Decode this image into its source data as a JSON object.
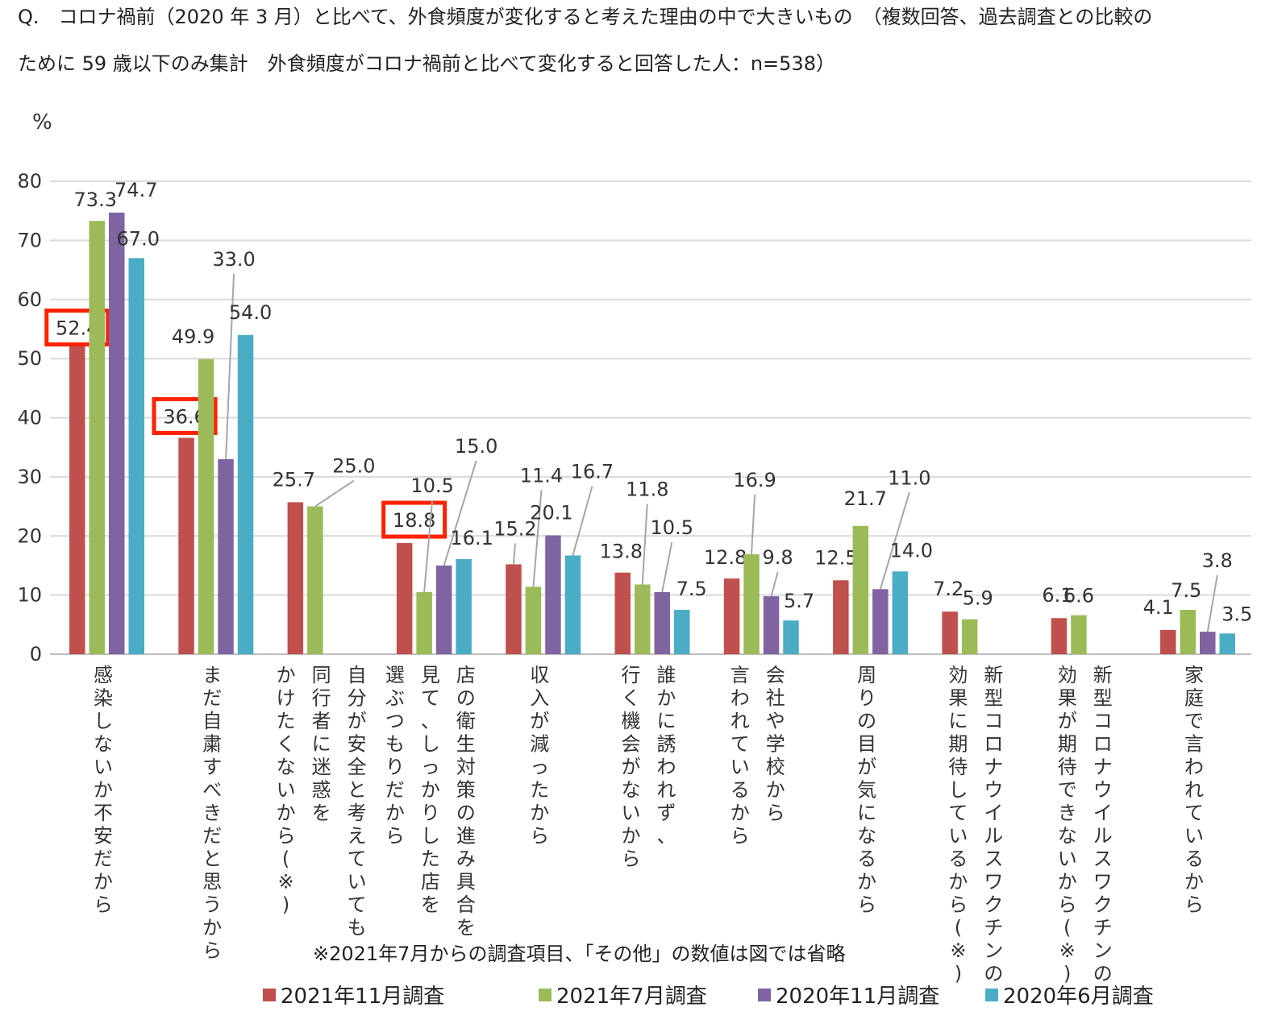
{
  "title": {
    "line1": "Q.　コロナ禍前（2020 年 3 月）と比べて、外食頻度が変化すると考えた理由の中で大きいもの　（複数回答、過去調査との比較の",
    "line2": "ために 59 歳以下のみ集計　外食頻度がコロナ禍前と比べて変化すると回答した人：n=538）"
  },
  "note": "※2021年7月からの調査項目、「その他」の数値は図では省略",
  "chart_data": {
    "type": "bar",
    "ylabel": "%",
    "ylim": [
      0,
      80
    ],
    "yticks": [
      0,
      10,
      20,
      30,
      40,
      50,
      60,
      70,
      80
    ],
    "grid": true,
    "legend_position": "bottom",
    "categories": [
      [
        "感染しないか不安だから"
      ],
      [
        "まだ自粛すべきだと思うから"
      ],
      [
        "自分が安全と考えていても",
        "同行者に迷惑を",
        "かけたくないから(※)"
      ],
      [
        "店の衛生対策の進み具合を",
        "見て、しっかりした店を",
        "選ぶつもりだから"
      ],
      [
        "収入が減ったから"
      ],
      [
        "誰かに誘われず、",
        "行く機会がないから"
      ],
      [
        "会社や学校から",
        "言われているから"
      ],
      [
        "周りの目が気になるから"
      ],
      [
        "新型コロナウイルスワクチンの",
        "効果に期待しているから(※)"
      ],
      [
        "新型コロナウイルスワクチンの",
        "効果が期待できないから(※)"
      ],
      [
        "家庭で言われているから"
      ]
    ],
    "series": [
      {
        "name": "2021年11月調査",
        "color": "#c0504d",
        "values": [
          52.4,
          36.6,
          25.7,
          18.8,
          15.2,
          13.8,
          12.8,
          12.5,
          7.2,
          6.1,
          4.1
        ]
      },
      {
        "name": "2021年7月調査",
        "color": "#9bbb59",
        "values": [
          73.3,
          49.9,
          25.0,
          10.5,
          11.4,
          11.8,
          16.9,
          21.7,
          5.9,
          6.6,
          7.5
        ]
      },
      {
        "name": "2020年11月調査",
        "color": "#8064a2",
        "values": [
          74.7,
          33.0,
          null,
          15.0,
          20.1,
          10.5,
          9.8,
          11.0,
          null,
          null,
          3.8
        ]
      },
      {
        "name": "2020年6月調査",
        "color": "#4bacc6",
        "values": [
          67.0,
          54.0,
          null,
          16.1,
          16.7,
          7.5,
          5.7,
          14.0,
          null,
          null,
          3.5
        ]
      }
    ],
    "highlighted": [
      {
        "series": 0,
        "category": 0
      },
      {
        "series": 0,
        "category": 1
      },
      {
        "series": 0,
        "category": 3
      }
    ],
    "highlight_color": "#ff2200"
  }
}
